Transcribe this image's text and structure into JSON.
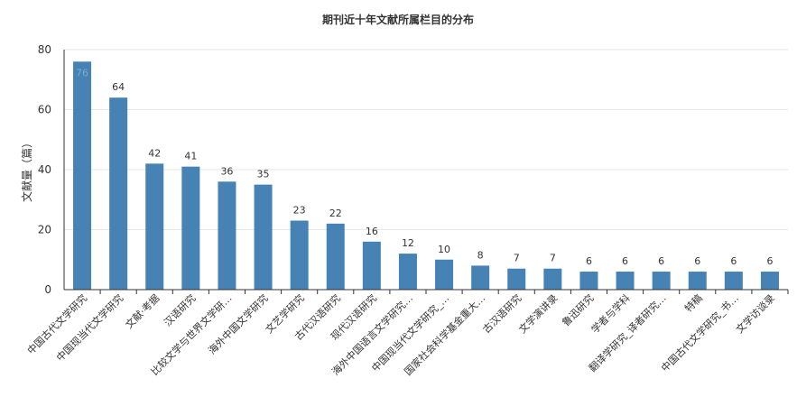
{
  "chart_data": {
    "type": "bar",
    "title": "期刊近十年文献所属栏目的分布",
    "xlabel": "",
    "ylabel": "文献量（篇）",
    "ylim": [
      0,
      80
    ],
    "yticks": [
      0,
      20,
      40,
      60,
      80
    ],
    "grid": true,
    "bar_color": "#4682b4",
    "categories": [
      "中国古代文学研究",
      "中国现当代文学研究",
      "文献·考据",
      "汉语研究",
      "比较文学与世界文学研…",
      "海外中国文学研究",
      "文艺学研究",
      "古代汉语研究",
      "现代汉语研究",
      "海外中国语言文学研究…",
      "中国现当代文学研究_…",
      "国家社会科学基金重大…",
      "古汉语研究",
      "文学演讲录",
      "鲁迅研究",
      "学者与学科",
      "翻译学研究_译者研究…",
      "特稿",
      "中国古代文学研究_书…",
      "文学访谈录"
    ],
    "values": [
      76,
      64,
      42,
      41,
      36,
      35,
      23,
      22,
      16,
      12,
      10,
      8,
      7,
      7,
      6,
      6,
      6,
      6,
      6,
      6
    ]
  }
}
